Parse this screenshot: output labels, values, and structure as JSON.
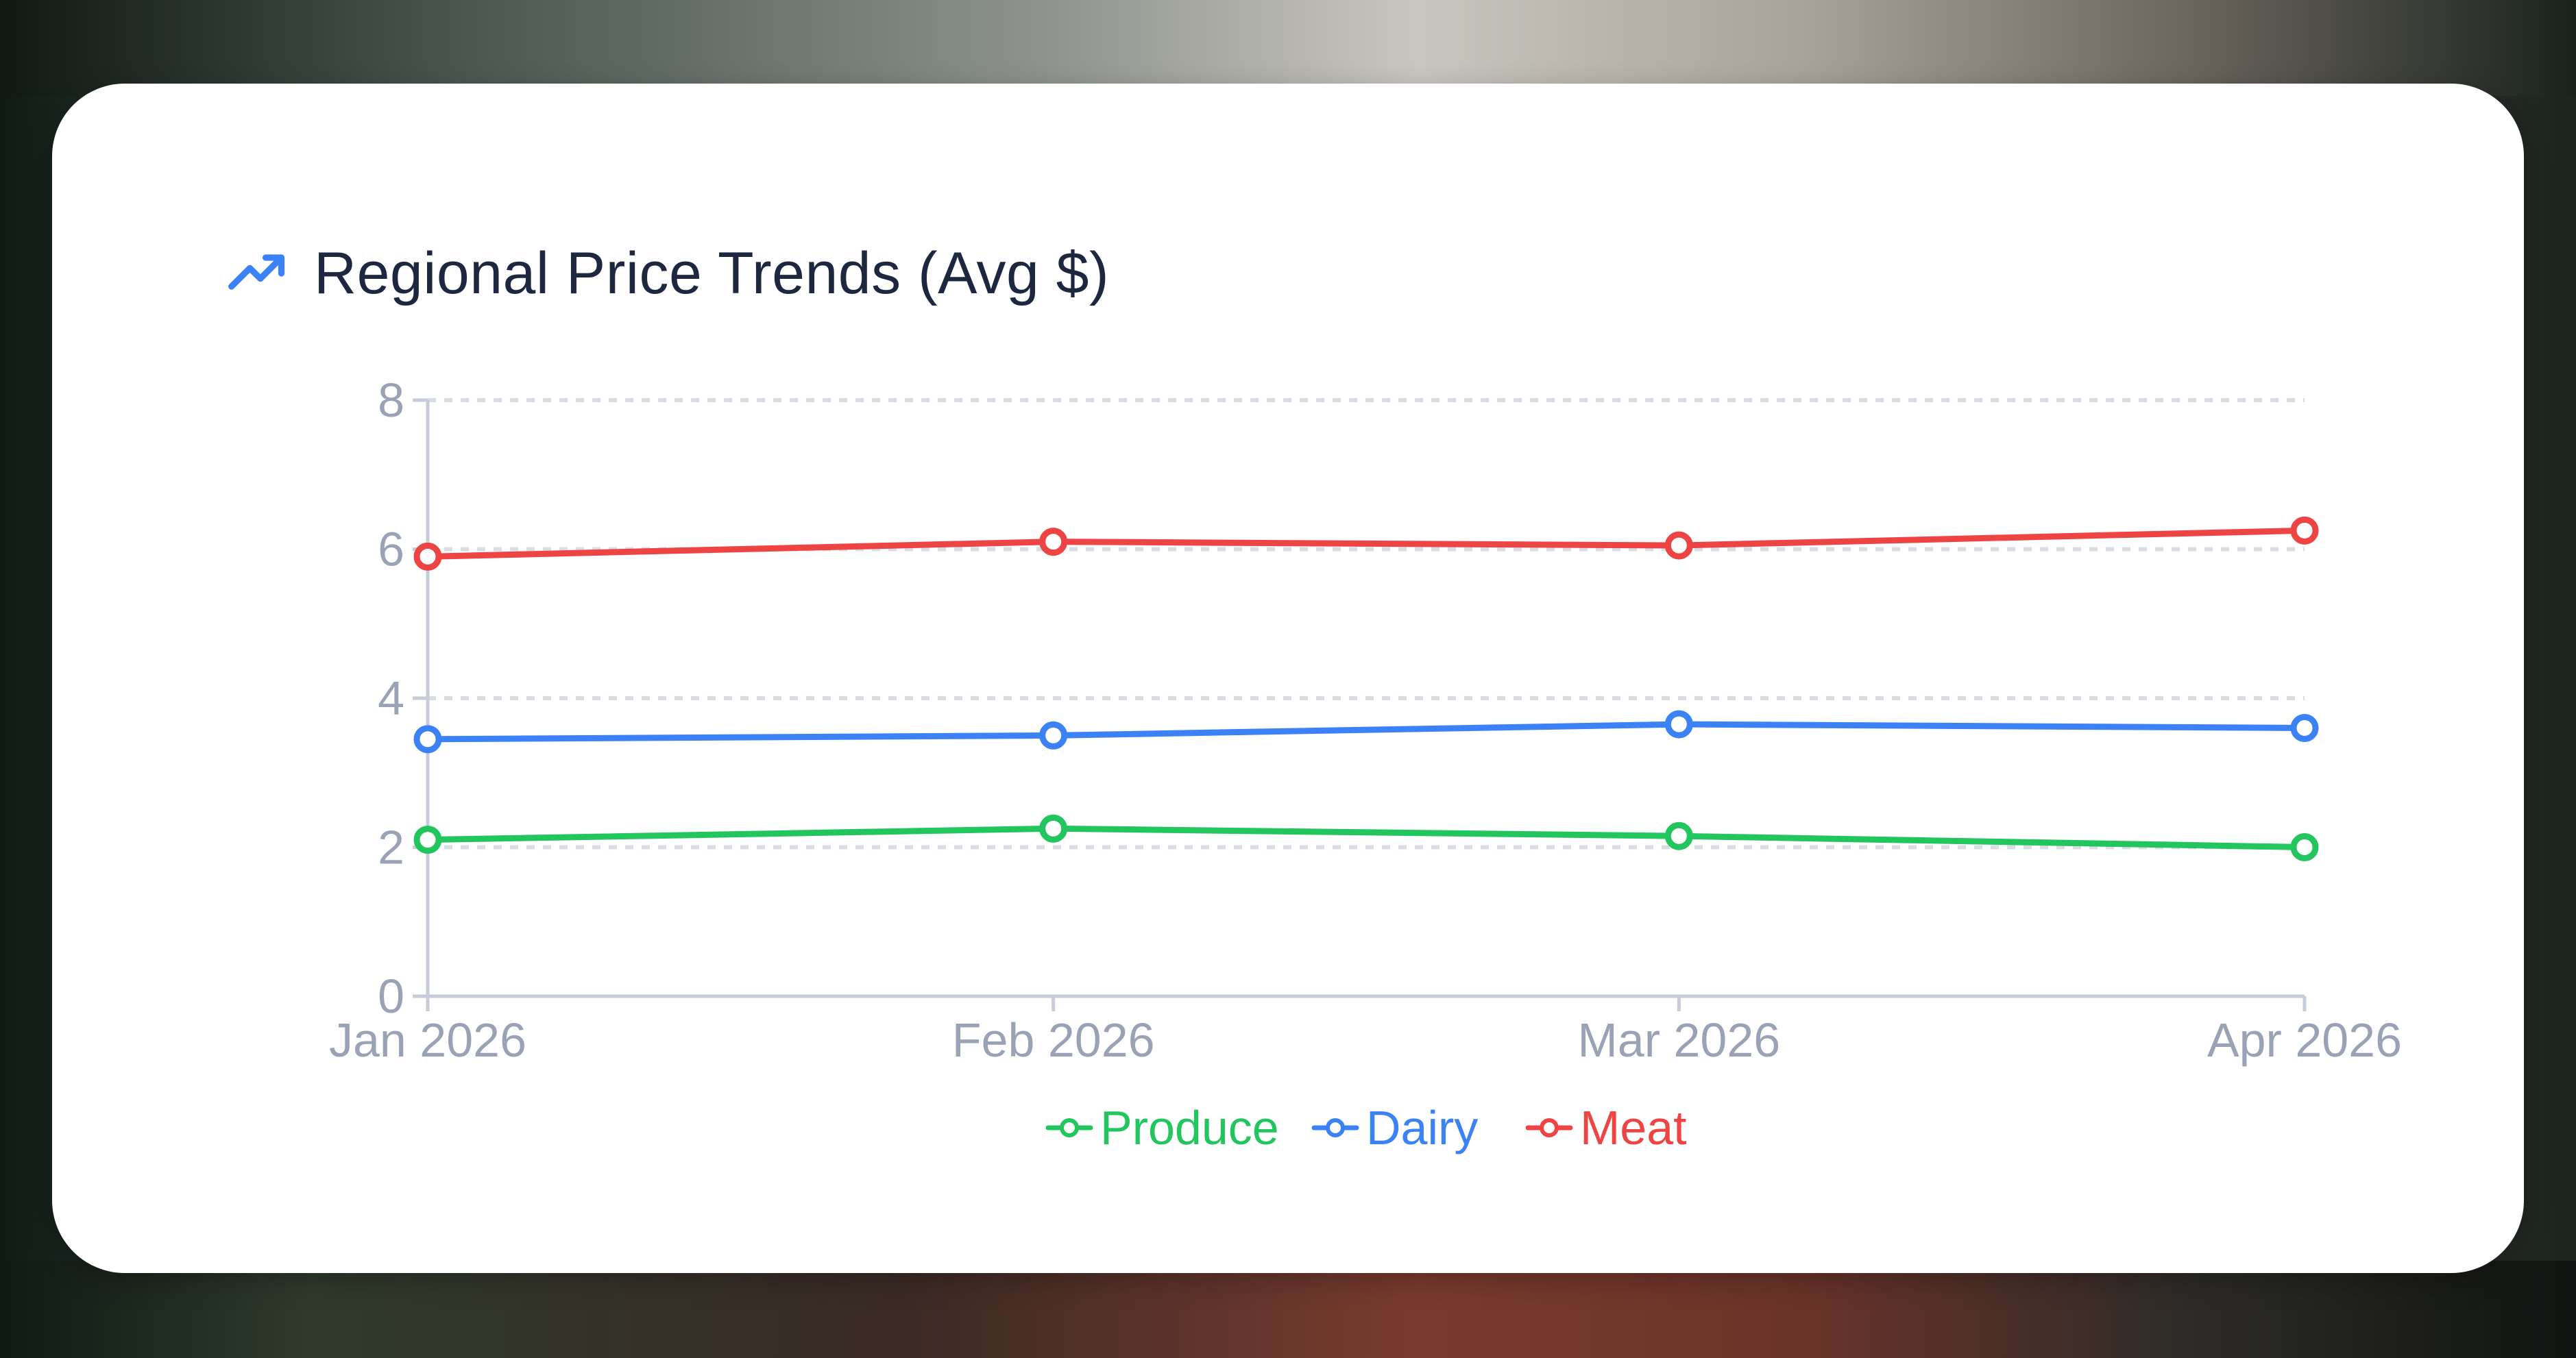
{
  "title": "Regional Price Trends (Avg $)",
  "icon": "trending-up-icon",
  "colors": {
    "produce": "#22c55e",
    "dairy": "#3b82f6",
    "meat": "#ef4444",
    "axis": "#c7ccd8",
    "tick_text": "#9aa3b6",
    "grid": "#d9dde6",
    "title": "#1e2740"
  },
  "chart_data": {
    "type": "line",
    "title": "Regional Price Trends (Avg $)",
    "xlabel": "",
    "ylabel": "",
    "categories": [
      "Jan 2026",
      "Feb 2026",
      "Mar 2026",
      "Apr 2026"
    ],
    "ylim": [
      0,
      8
    ],
    "yticks": [
      0,
      2,
      4,
      6,
      8
    ],
    "grid": true,
    "legend_position": "bottom-center",
    "series": [
      {
        "name": "Produce",
        "color": "#22c55e",
        "values": [
          2.1,
          2.25,
          2.15,
          2.0
        ]
      },
      {
        "name": "Dairy",
        "color": "#3b82f6",
        "values": [
          3.45,
          3.5,
          3.65,
          3.6
        ]
      },
      {
        "name": "Meat",
        "color": "#ef4444",
        "values": [
          5.9,
          6.1,
          6.05,
          6.25
        ]
      }
    ]
  }
}
